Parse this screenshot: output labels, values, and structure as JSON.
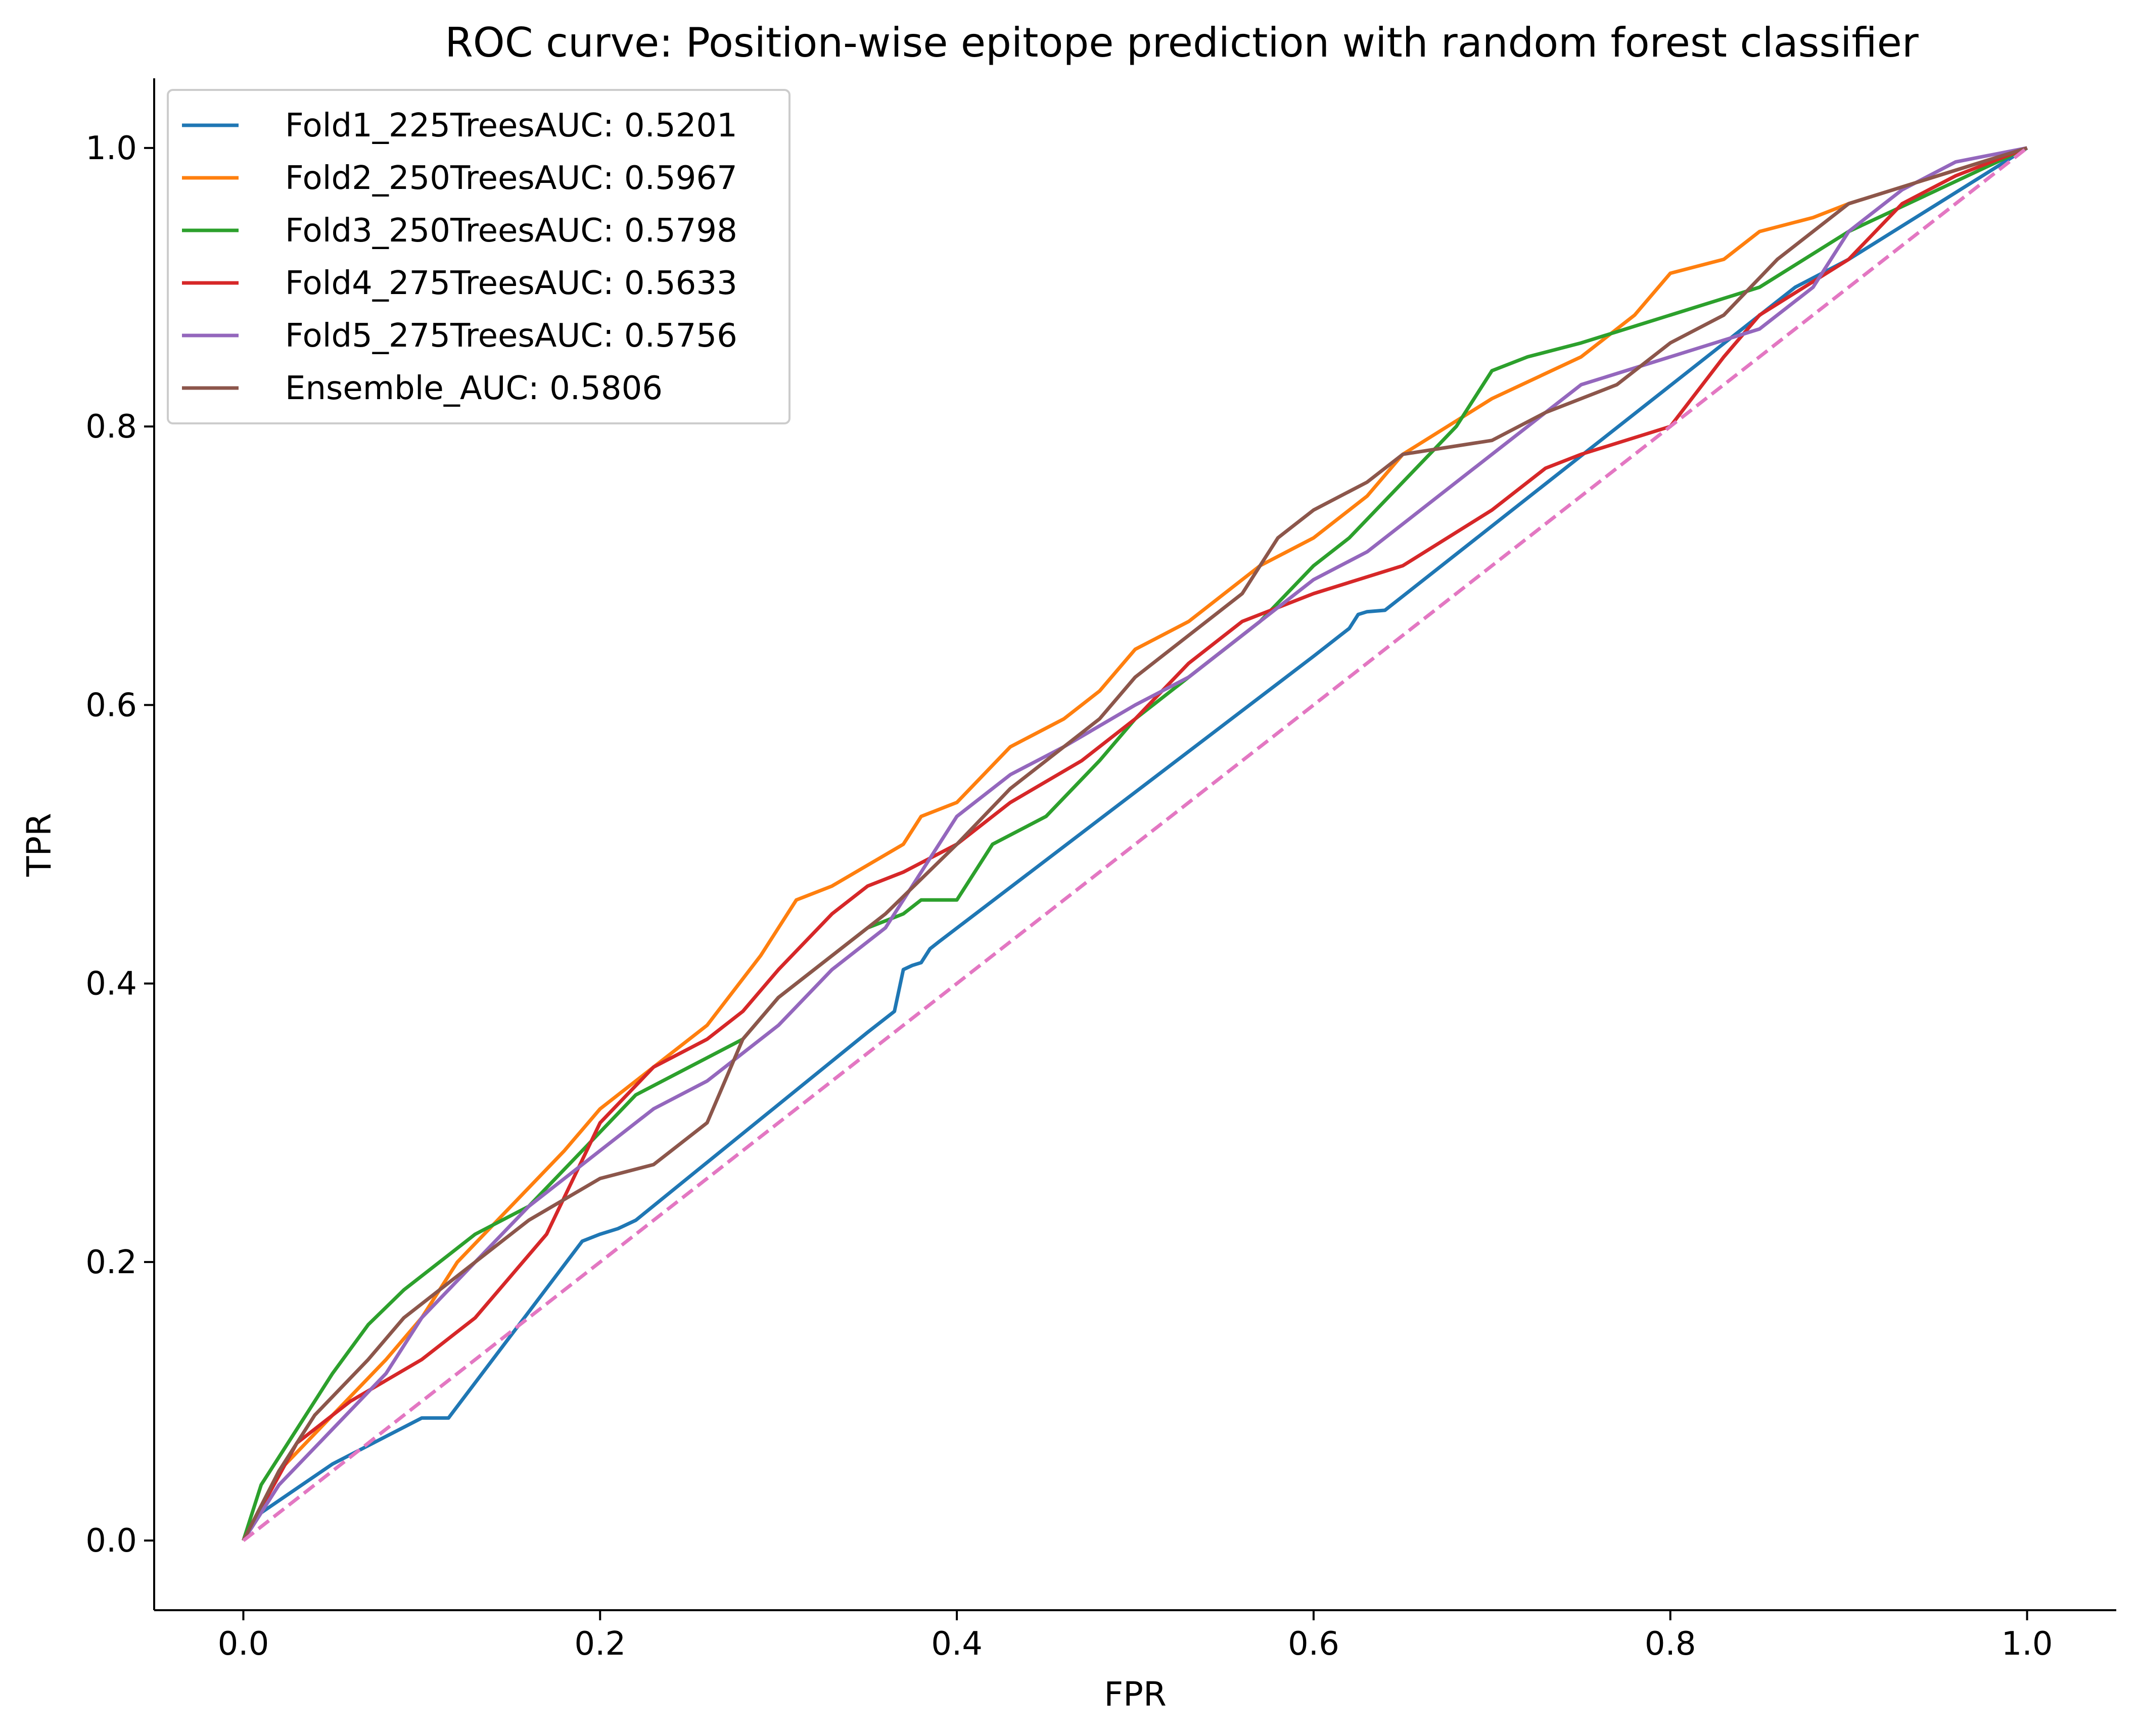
{
  "chart_data": {
    "type": "line",
    "title": "ROC curve: Position-wise epitope prediction with random forest classifier",
    "xlabel": "FPR",
    "ylabel": "TPR",
    "xlim": [
      -0.05,
      1.05
    ],
    "ylim": [
      -0.05,
      1.05
    ],
    "xticks": [
      0.0,
      0.2,
      0.4,
      0.6,
      0.8,
      1.0
    ],
    "yticks": [
      0.0,
      0.2,
      0.4,
      0.6,
      0.8,
      1.0
    ],
    "xtick_labels": [
      "0.0",
      "0.2",
      "0.4",
      "0.6",
      "0.8",
      "1.0"
    ],
    "ytick_labels": [
      "0.0",
      "0.2",
      "0.4",
      "0.6",
      "0.8",
      "1.0"
    ],
    "grid": false,
    "legend_position": "upper-left",
    "series": [
      {
        "name": "Fold1_225TreesAUC: 0.5201",
        "color": "#1f77b4",
        "dash": "solid",
        "x": [
          0,
          0.01,
          0.05,
          0.1,
          0.115,
          0.19,
          0.2,
          0.21,
          0.22,
          0.35,
          0.365,
          0.37,
          0.375,
          0.38,
          0.385,
          0.39,
          0.6,
          0.615,
          0.62,
          0.625,
          0.63,
          0.64,
          0.87,
          0.9,
          0.95,
          1.0
        ],
        "y": [
          0,
          0.02,
          0.055,
          0.088,
          0.088,
          0.215,
          0.22,
          0.224,
          0.23,
          0.365,
          0.38,
          0.41,
          0.413,
          0.415,
          0.425,
          0.43,
          0.635,
          0.65,
          0.655,
          0.665,
          0.667,
          0.668,
          0.9,
          0.92,
          0.96,
          1.0
        ]
      },
      {
        "name": "Fold2_250TreesAUC: 0.5967",
        "color": "#ff7f0e",
        "dash": "solid",
        "x": [
          0,
          0.02,
          0.05,
          0.08,
          0.1,
          0.12,
          0.15,
          0.18,
          0.2,
          0.23,
          0.26,
          0.29,
          0.31,
          0.33,
          0.37,
          0.38,
          0.4,
          0.43,
          0.46,
          0.48,
          0.5,
          0.53,
          0.57,
          0.6,
          0.63,
          0.65,
          0.7,
          0.75,
          0.78,
          0.8,
          0.83,
          0.85,
          0.88,
          0.9,
          0.95,
          1.0
        ],
        "y": [
          0,
          0.05,
          0.09,
          0.13,
          0.16,
          0.2,
          0.24,
          0.28,
          0.31,
          0.34,
          0.37,
          0.42,
          0.46,
          0.47,
          0.5,
          0.52,
          0.53,
          0.57,
          0.59,
          0.61,
          0.64,
          0.66,
          0.7,
          0.72,
          0.75,
          0.78,
          0.82,
          0.85,
          0.88,
          0.91,
          0.92,
          0.94,
          0.95,
          0.96,
          0.98,
          1.0
        ]
      },
      {
        "name": "Fold3_250TreesAUC: 0.5798",
        "color": "#2ca02c",
        "dash": "solid",
        "x": [
          0,
          0.01,
          0.02,
          0.03,
          0.05,
          0.07,
          0.09,
          0.11,
          0.13,
          0.16,
          0.19,
          0.22,
          0.25,
          0.28,
          0.3,
          0.33,
          0.35,
          0.37,
          0.38,
          0.4,
          0.42,
          0.45,
          0.48,
          0.5,
          0.52,
          0.55,
          0.57,
          0.6,
          0.62,
          0.65,
          0.68,
          0.7,
          0.72,
          0.75,
          0.8,
          0.85,
          0.9,
          0.95,
          1.0
        ],
        "y": [
          0,
          0.04,
          0.06,
          0.08,
          0.12,
          0.155,
          0.18,
          0.2,
          0.22,
          0.24,
          0.28,
          0.32,
          0.34,
          0.36,
          0.39,
          0.42,
          0.44,
          0.45,
          0.46,
          0.46,
          0.5,
          0.52,
          0.56,
          0.59,
          0.61,
          0.64,
          0.66,
          0.7,
          0.72,
          0.76,
          0.8,
          0.84,
          0.85,
          0.86,
          0.88,
          0.9,
          0.94,
          0.97,
          1.0
        ]
      },
      {
        "name": "Fold4_275TreesAUC: 0.5633",
        "color": "#d62728",
        "dash": "solid",
        "x": [
          0,
          0.03,
          0.06,
          0.1,
          0.13,
          0.17,
          0.2,
          0.23,
          0.26,
          0.28,
          0.3,
          0.33,
          0.35,
          0.37,
          0.4,
          0.43,
          0.47,
          0.5,
          0.53,
          0.56,
          0.6,
          0.65,
          0.7,
          0.73,
          0.75,
          0.8,
          0.83,
          0.85,
          0.9,
          0.93,
          0.96,
          1.0
        ],
        "y": [
          0,
          0.07,
          0.1,
          0.13,
          0.16,
          0.22,
          0.3,
          0.34,
          0.36,
          0.38,
          0.41,
          0.45,
          0.47,
          0.48,
          0.5,
          0.53,
          0.56,
          0.59,
          0.63,
          0.66,
          0.68,
          0.7,
          0.74,
          0.77,
          0.78,
          0.8,
          0.85,
          0.88,
          0.92,
          0.96,
          0.98,
          1.0
        ]
      },
      {
        "name": "Fold5_275TreesAUC: 0.5756",
        "color": "#9467bd",
        "dash": "solid",
        "x": [
          0,
          0.02,
          0.05,
          0.08,
          0.1,
          0.13,
          0.16,
          0.2,
          0.23,
          0.26,
          0.3,
          0.33,
          0.36,
          0.38,
          0.4,
          0.43,
          0.46,
          0.5,
          0.53,
          0.56,
          0.6,
          0.63,
          0.66,
          0.69,
          0.72,
          0.75,
          0.8,
          0.85,
          0.88,
          0.9,
          0.93,
          0.96,
          1.0
        ],
        "y": [
          0,
          0.04,
          0.08,
          0.12,
          0.16,
          0.2,
          0.24,
          0.28,
          0.31,
          0.33,
          0.37,
          0.41,
          0.44,
          0.48,
          0.52,
          0.55,
          0.57,
          0.6,
          0.62,
          0.65,
          0.69,
          0.71,
          0.74,
          0.77,
          0.8,
          0.83,
          0.85,
          0.87,
          0.9,
          0.94,
          0.97,
          0.99,
          1.0
        ]
      },
      {
        "name": "Ensemble_AUC: 0.5806",
        "color": "#8c564b",
        "dash": "solid",
        "x": [
          0,
          0.02,
          0.04,
          0.07,
          0.09,
          0.12,
          0.16,
          0.2,
          0.23,
          0.26,
          0.28,
          0.3,
          0.33,
          0.36,
          0.4,
          0.43,
          0.46,
          0.48,
          0.5,
          0.53,
          0.56,
          0.58,
          0.6,
          0.63,
          0.65,
          0.7,
          0.73,
          0.77,
          0.8,
          0.83,
          0.86,
          0.9,
          0.95,
          1.0
        ],
        "y": [
          0,
          0.05,
          0.09,
          0.13,
          0.16,
          0.19,
          0.23,
          0.26,
          0.27,
          0.3,
          0.36,
          0.39,
          0.42,
          0.45,
          0.5,
          0.54,
          0.57,
          0.59,
          0.62,
          0.65,
          0.68,
          0.72,
          0.74,
          0.76,
          0.78,
          0.79,
          0.81,
          0.83,
          0.86,
          0.88,
          0.92,
          0.96,
          0.98,
          1.0
        ]
      },
      {
        "name": "",
        "color": "#e377c2",
        "dash": "dashed",
        "x": [
          0,
          1
        ],
        "y": [
          0,
          1
        ]
      }
    ]
  }
}
